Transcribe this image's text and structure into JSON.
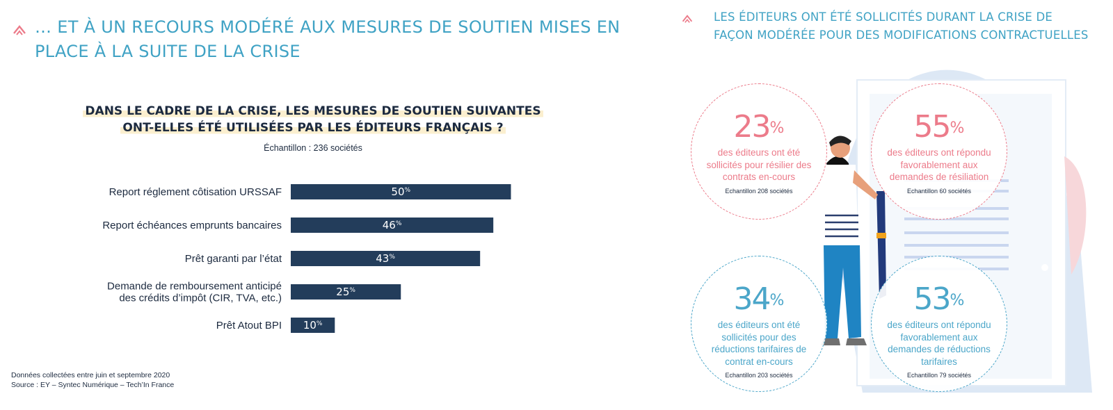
{
  "left_section": {
    "title": "… ET À UN RECOURS MODÉRÉ AUX MESURES DE SOUTIEN MISES EN PLACE À LA SUITE DE LA CRISE"
  },
  "chart_section": {
    "question_line1": "DANS LE CADRE DE LA CRISE, LES MESURES DE SOUTIEN SUIVANTES",
    "question_line2": "ONT-ELLES ÉTÉ UTILISÉES PAR LES ÉDITEURS FRANÇAIS ?",
    "sample": "Échantillon : 236 sociétés"
  },
  "chart_data": {
    "type": "bar",
    "orientation": "horizontal",
    "title": "DANS LE CADRE DE LA CRISE, LES MESURES DE SOUTIEN SUIVANTES ONT-ELLES ÉTÉ UTILISÉES PAR LES ÉDITEURS FRANÇAIS ?",
    "subtitle": "Échantillon : 236 sociétés",
    "categories": [
      [
        "Report réglement côtisation URSSAF"
      ],
      [
        "Report échéances emprunts bancaires"
      ],
      [
        "Prêt garanti par l’état"
      ],
      [
        "Demande de remboursement anticipé",
        "des crédits d’impôt (CIR, TVA, etc.)"
      ],
      [
        "Prêt Atout BPI"
      ]
    ],
    "values": [
      50,
      46,
      43,
      25,
      10
    ],
    "value_unit": "%",
    "bar_color": "#233d5b",
    "grid": false,
    "legend": false
  },
  "footer": {
    "line1": "Données collectées entre juin et septembre 2020",
    "line2": "Source : EY – Syntec Numérique – Tech’In France"
  },
  "right_section": {
    "title_line1": "LES ÉDITEURS ONT ÉTÉ SOLLICITÉS DURANT LA CRISE DE",
    "title_line2": "FAÇON MODÉRÉE POUR DES MODIFICATIONS CONTRACTUELLES",
    "stats": [
      {
        "value": "23",
        "unit": "%",
        "desc": "des éditeurs ont été sollicités pour résilier des contrats en-cours",
        "sample": "Echantillon 208 sociétés",
        "color": "#ec7b8a"
      },
      {
        "value": "55",
        "unit": "%",
        "desc": "des éditeurs ont répondu favorablement aux demandes de résiliation",
        "sample": "Echantillon 60 sociétés",
        "color": "#ec7b8a"
      },
      {
        "value": "34",
        "unit": "%",
        "desc": "des éditeurs ont été sollicités pour des réductions tarifaires de contrat en-cours",
        "sample": "Echantillon 203 sociétés",
        "color": "#4ba6c9"
      },
      {
        "value": "53",
        "unit": "%",
        "desc": "des éditeurs ont répondu favorablement aux demandes de réductions tarifaires",
        "sample": "Echantillon 79 sociétés",
        "color": "#4ba6c9"
      }
    ]
  },
  "colors": {
    "accent": "#3fa2c4",
    "chevron": "#ec7b8a",
    "navy": "#233d5b",
    "highlight": "#fbefcf"
  }
}
